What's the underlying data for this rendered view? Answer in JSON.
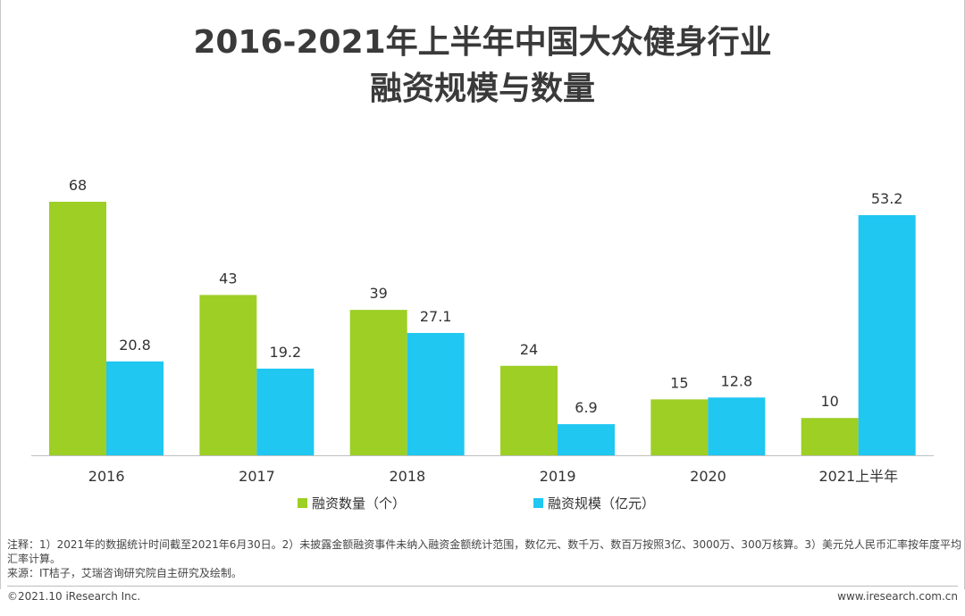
{
  "title_line1": "2016-2021年上半年中国大众健身行业",
  "title_line2": "融资规模与数量",
  "chart_data": {
    "type": "bar",
    "categories": [
      "2016",
      "2017",
      "2018",
      "2019",
      "2020",
      "2021上半年"
    ],
    "series": [
      {
        "name": "融资数量（个）",
        "color": "#9DCF24",
        "values": [
          68,
          43,
          39,
          24,
          15,
          10
        ]
      },
      {
        "name": "融资规模（亿元）",
        "color": "#1FC7F1",
        "values": [
          20.8,
          19.2,
          27.1,
          6.9,
          12.8,
          53.2
        ]
      }
    ],
    "value_labels": {
      "s0": [
        "68",
        "43",
        "39",
        "24",
        "15",
        "10"
      ],
      "s1": [
        "20.8",
        "19.2",
        "27.1",
        "6.9",
        "12.8",
        "53.2"
      ]
    },
    "legend_position": "bottom"
  },
  "notes": {
    "line1": "注释：1）2021年的数据统计时间截至2021年6月30日。2）未披露金额融资事件未纳入融资金额统计范围，数亿元、数千万、数百万按照3亿、3000万、300万核算。3）美元兑人民币汇率按年度平均汇率计算。",
    "line2": "来源：IT桔子，艾瑞咨询研究院自主研究及绘制。"
  },
  "footer": {
    "copyright": "©2021.10 iResearch Inc.",
    "website": "www.iresearch.com.cn"
  }
}
